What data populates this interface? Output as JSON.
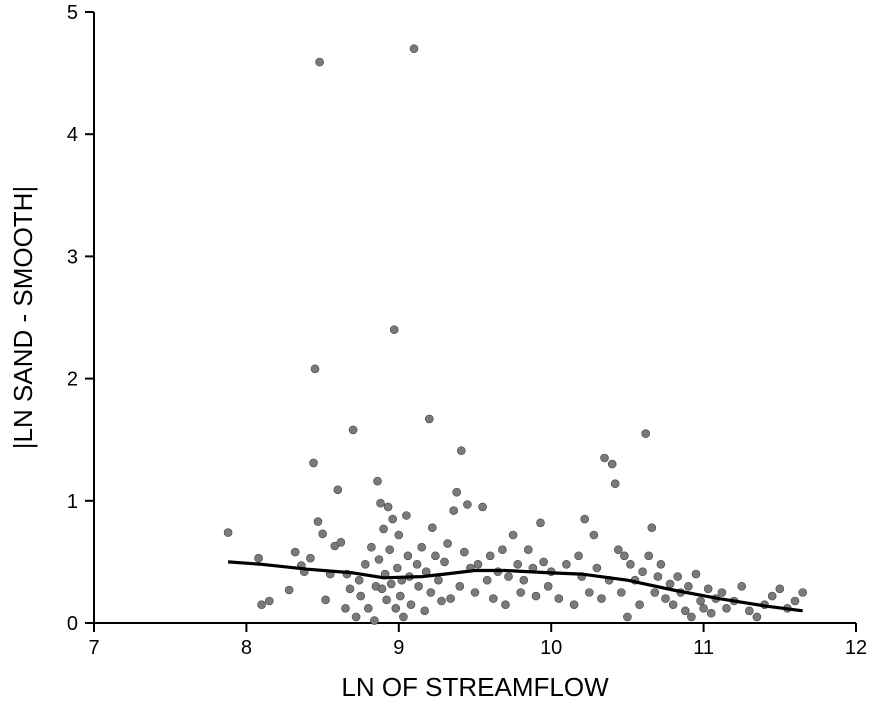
{
  "chart_data": {
    "type": "scatter",
    "xlabel": "LN OF STREAMFLOW",
    "ylabel": "|LN SAND - SMOOTH|",
    "xlim": [
      7,
      12
    ],
    "ylim": [
      0,
      5
    ],
    "xticks": [
      "7",
      "8",
      "9",
      "10",
      "11",
      "12"
    ],
    "yticks": [
      "0",
      "1",
      "2",
      "3",
      "4",
      "5"
    ],
    "grid": false,
    "colors": {
      "points": "#7a7a7a",
      "line": "#000000"
    },
    "points": [
      [
        7.88,
        0.74
      ],
      [
        8.08,
        0.53
      ],
      [
        8.1,
        0.15
      ],
      [
        8.15,
        0.18
      ],
      [
        8.28,
        0.27
      ],
      [
        8.32,
        0.58
      ],
      [
        8.36,
        0.47
      ],
      [
        8.38,
        0.42
      ],
      [
        8.42,
        0.53
      ],
      [
        8.44,
        1.31
      ],
      [
        8.45,
        2.08
      ],
      [
        8.47,
        0.83
      ],
      [
        8.48,
        4.59
      ],
      [
        8.5,
        0.73
      ],
      [
        8.52,
        0.19
      ],
      [
        8.55,
        0.4
      ],
      [
        8.58,
        0.63
      ],
      [
        8.6,
        1.09
      ],
      [
        8.62,
        0.66
      ],
      [
        8.65,
        0.12
      ],
      [
        8.66,
        0.4
      ],
      [
        8.68,
        0.28
      ],
      [
        8.7,
        1.58
      ],
      [
        8.72,
        0.05
      ],
      [
        8.74,
        0.35
      ],
      [
        8.75,
        0.22
      ],
      [
        8.78,
        0.48
      ],
      [
        8.8,
        0.12
      ],
      [
        8.82,
        0.62
      ],
      [
        8.84,
        0.02
      ],
      [
        8.85,
        0.3
      ],
      [
        8.86,
        1.16
      ],
      [
        8.87,
        0.52
      ],
      [
        8.88,
        0.98
      ],
      [
        8.89,
        0.28
      ],
      [
        8.9,
        0.77
      ],
      [
        8.91,
        0.4
      ],
      [
        8.92,
        0.19
      ],
      [
        8.93,
        0.95
      ],
      [
        8.94,
        0.6
      ],
      [
        8.95,
        0.32
      ],
      [
        8.96,
        0.85
      ],
      [
        8.97,
        2.4
      ],
      [
        8.98,
        0.12
      ],
      [
        8.99,
        0.45
      ],
      [
        9.0,
        0.72
      ],
      [
        9.01,
        0.22
      ],
      [
        9.02,
        0.35
      ],
      [
        9.03,
        0.05
      ],
      [
        9.05,
        0.88
      ],
      [
        9.06,
        0.55
      ],
      [
        9.07,
        0.38
      ],
      [
        9.08,
        0.15
      ],
      [
        9.1,
        4.7
      ],
      [
        9.12,
        0.48
      ],
      [
        9.13,
        0.3
      ],
      [
        9.15,
        0.62
      ],
      [
        9.17,
        0.1
      ],
      [
        9.18,
        0.42
      ],
      [
        9.2,
        1.67
      ],
      [
        9.21,
        0.25
      ],
      [
        9.22,
        0.78
      ],
      [
        9.24,
        0.55
      ],
      [
        9.26,
        0.35
      ],
      [
        9.28,
        0.18
      ],
      [
        9.3,
        0.5
      ],
      [
        9.32,
        0.65
      ],
      [
        9.34,
        0.2
      ],
      [
        9.36,
        0.92
      ],
      [
        9.38,
        1.07
      ],
      [
        9.4,
        0.3
      ],
      [
        9.41,
        1.41
      ],
      [
        9.43,
        0.58
      ],
      [
        9.45,
        0.97
      ],
      [
        9.47,
        0.45
      ],
      [
        9.5,
        0.25
      ],
      [
        9.52,
        0.48
      ],
      [
        9.55,
        0.95
      ],
      [
        9.58,
        0.35
      ],
      [
        9.6,
        0.55
      ],
      [
        9.62,
        0.2
      ],
      [
        9.65,
        0.42
      ],
      [
        9.68,
        0.6
      ],
      [
        9.7,
        0.15
      ],
      [
        9.72,
        0.38
      ],
      [
        9.75,
        0.72
      ],
      [
        9.78,
        0.48
      ],
      [
        9.8,
        0.25
      ],
      [
        9.82,
        0.35
      ],
      [
        9.85,
        0.6
      ],
      [
        9.88,
        0.45
      ],
      [
        9.9,
        0.22
      ],
      [
        9.93,
        0.82
      ],
      [
        9.95,
        0.5
      ],
      [
        9.98,
        0.3
      ],
      [
        10.0,
        0.42
      ],
      [
        10.05,
        0.2
      ],
      [
        10.1,
        0.48
      ],
      [
        10.15,
        0.15
      ],
      [
        10.18,
        0.55
      ],
      [
        10.2,
        0.38
      ],
      [
        10.22,
        0.85
      ],
      [
        10.25,
        0.25
      ],
      [
        10.28,
        0.72
      ],
      [
        10.3,
        0.45
      ],
      [
        10.33,
        0.2
      ],
      [
        10.35,
        1.35
      ],
      [
        10.38,
        0.35
      ],
      [
        10.4,
        1.3
      ],
      [
        10.42,
        1.14
      ],
      [
        10.44,
        0.6
      ],
      [
        10.46,
        0.25
      ],
      [
        10.48,
        0.55
      ],
      [
        10.5,
        0.05
      ],
      [
        10.52,
        0.48
      ],
      [
        10.55,
        0.35
      ],
      [
        10.58,
        0.15
      ],
      [
        10.6,
        0.42
      ],
      [
        10.62,
        1.55
      ],
      [
        10.64,
        0.55
      ],
      [
        10.66,
        0.78
      ],
      [
        10.68,
        0.25
      ],
      [
        10.7,
        0.38
      ],
      [
        10.72,
        0.48
      ],
      [
        10.75,
        0.2
      ],
      [
        10.78,
        0.32
      ],
      [
        10.8,
        0.15
      ],
      [
        10.83,
        0.38
      ],
      [
        10.85,
        0.25
      ],
      [
        10.88,
        0.1
      ],
      [
        10.9,
        0.3
      ],
      [
        10.92,
        0.05
      ],
      [
        10.95,
        0.4
      ],
      [
        10.98,
        0.18
      ],
      [
        11.0,
        0.12
      ],
      [
        11.03,
        0.28
      ],
      [
        11.05,
        0.08
      ],
      [
        11.08,
        0.2
      ],
      [
        11.12,
        0.25
      ],
      [
        11.15,
        0.12
      ],
      [
        11.2,
        0.18
      ],
      [
        11.25,
        0.3
      ],
      [
        11.3,
        0.1
      ],
      [
        11.35,
        0.05
      ],
      [
        11.4,
        0.15
      ],
      [
        11.45,
        0.22
      ],
      [
        11.5,
        0.28
      ],
      [
        11.55,
        0.12
      ],
      [
        11.6,
        0.18
      ],
      [
        11.65,
        0.25
      ]
    ],
    "smooth_line": [
      [
        7.88,
        0.5
      ],
      [
        8.1,
        0.48
      ],
      [
        8.4,
        0.44
      ],
      [
        8.7,
        0.41
      ],
      [
        8.9,
        0.37
      ],
      [
        9.15,
        0.38
      ],
      [
        9.3,
        0.4
      ],
      [
        9.5,
        0.43
      ],
      [
        9.7,
        0.43
      ],
      [
        10.0,
        0.41
      ],
      [
        10.2,
        0.4
      ],
      [
        10.5,
        0.35
      ],
      [
        10.8,
        0.27
      ],
      [
        11.1,
        0.2
      ],
      [
        11.4,
        0.14
      ],
      [
        11.65,
        0.1
      ]
    ]
  }
}
